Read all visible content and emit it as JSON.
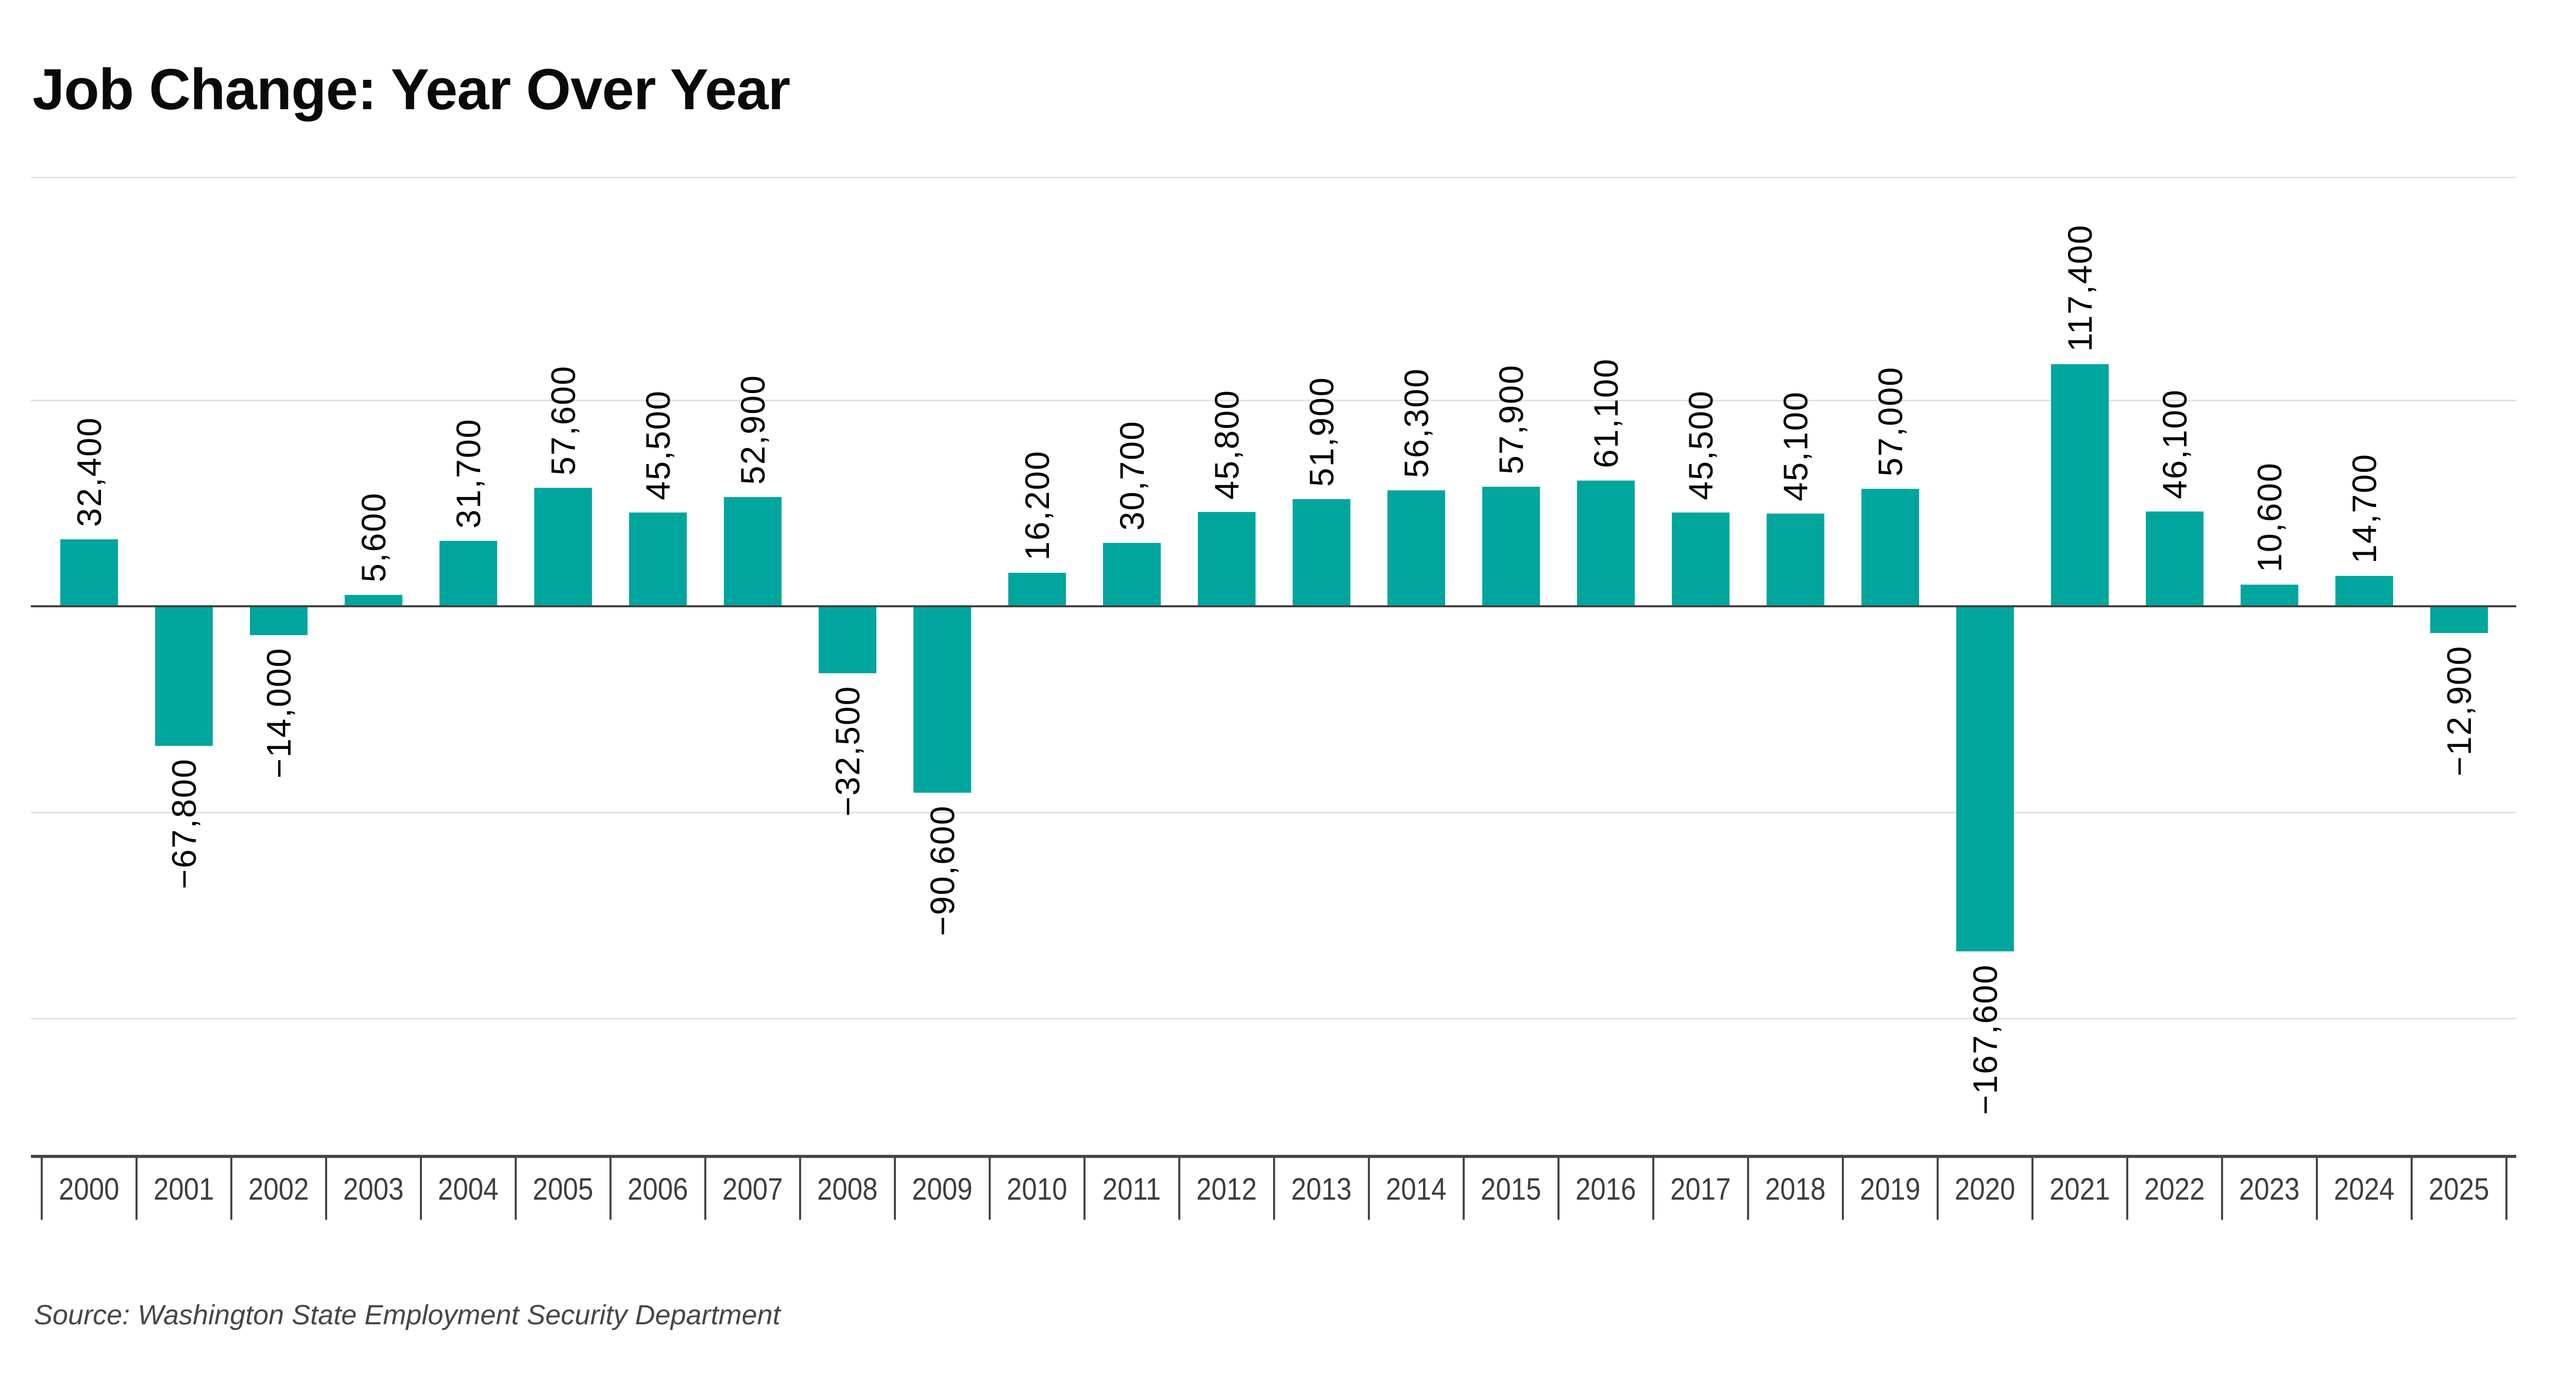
{
  "title": "Job Change: Year Over Year",
  "source_note": "Source: Washington State Employment Security Department",
  "colors": {
    "bar": "#00a69d",
    "zero_line": "#414141",
    "gridline": "#e2e2e2",
    "axis_band": "#464646",
    "bar_label": "#000000",
    "year_label": "#3e3e3e",
    "title": "#0a0a0a",
    "source": "#474747",
    "background": "#ffffff"
  },
  "chart_data": {
    "type": "bar",
    "title": "Job Change: Year Over Year",
    "xlabel": "",
    "ylabel": "",
    "categories": [
      "2000",
      "2001",
      "2002",
      "2003",
      "2004",
      "2005",
      "2006",
      "2007",
      "2008",
      "2009",
      "2010",
      "2011",
      "2012",
      "2013",
      "2014",
      "2015",
      "2016",
      "2017",
      "2018",
      "2019",
      "2020",
      "2021",
      "2022",
      "2023",
      "2024",
      "2025"
    ],
    "values": [
      32400,
      -67800,
      -14000,
      5600,
      31700,
      57600,
      45500,
      52900,
      -32500,
      -90600,
      16200,
      30700,
      45800,
      51900,
      56300,
      57900,
      61100,
      45500,
      45100,
      57000,
      -167600,
      117400,
      46100,
      10600,
      14700,
      -12900
    ],
    "bar_labels": [
      "32,400",
      "−67,800",
      "−14,000",
      "5,600",
      "31,700",
      "57,600",
      "45,500",
      "52,900",
      "−32,500",
      "−90,600",
      "16,200",
      "30,700",
      "45,800",
      "51,900",
      "56,300",
      "57,900",
      "61,100",
      "45,500",
      "45,100",
      "57,000",
      "−167,600",
      "117,400",
      "46,100",
      "10,600",
      "14,700",
      "−12,900"
    ],
    "ylim": [
      -266000,
      208000
    ],
    "gridline_values": [
      100000,
      -100000,
      -200000
    ],
    "grid": true,
    "legend": false,
    "bar_label_rotation": 90,
    "x_axis_style": "boxed-year-band"
  }
}
